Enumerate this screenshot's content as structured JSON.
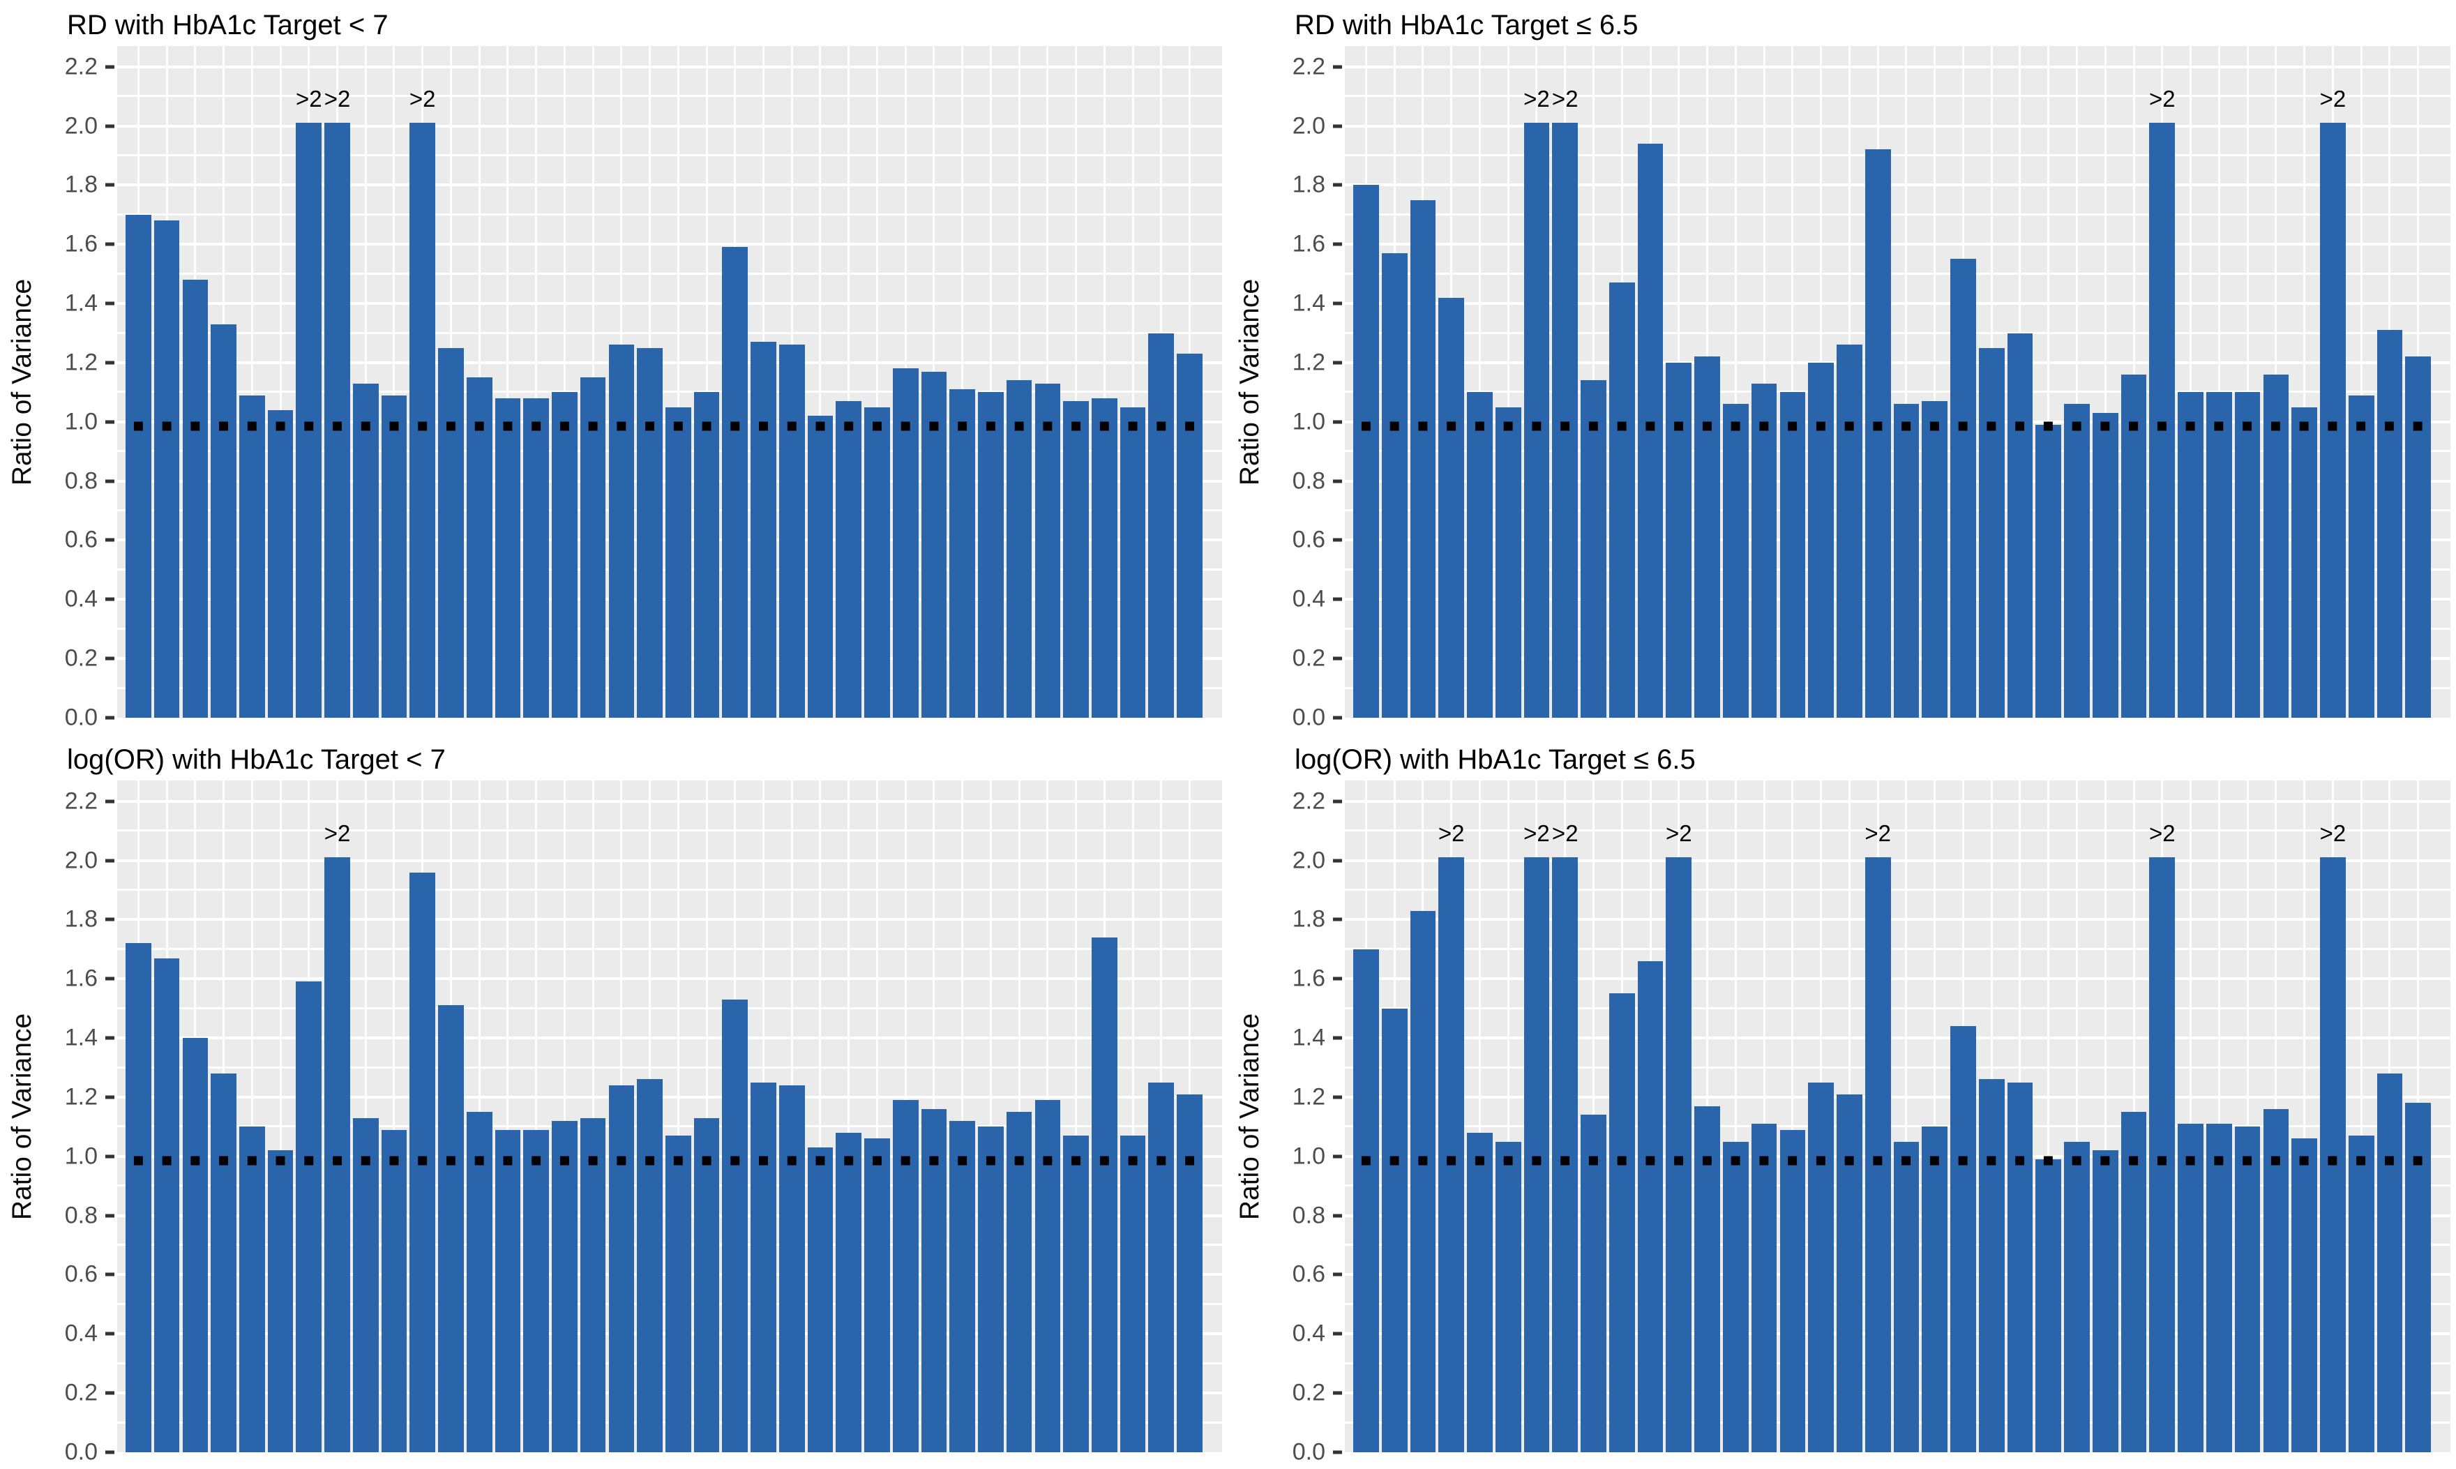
{
  "figure": {
    "background": "#FFFFFF",
    "layout": "2x2 grid of bar charts"
  },
  "chart_data": {
    "type": "bar",
    "ylabel": "Ratio of Variance",
    "ylim": [
      0,
      2.27
    ],
    "yticks": [
      "0.0",
      "0.2",
      "0.4",
      "0.6",
      "0.8",
      "1.0",
      "1.2",
      "1.4",
      "1.6",
      "1.8",
      "2.0",
      "2.2"
    ],
    "grid_minor_step": 0.1,
    "grid_on": true,
    "legend": "none",
    "xlabel": "",
    "x_tick_labels": "none",
    "n_bars_per_panel": 38,
    "reference_line_y": 1.0,
    "reference_line_style": "dotted",
    "reference_line_color": "#000000",
    "censor_cap": {
      "display_value": 2.01,
      "label": ">2",
      "label_y": 2.045
    },
    "bar_color": "#2A65AC",
    "panel_bg": "#EBEBEB",
    "grid_color": "#FFFFFF",
    "tick_label_color": "#4D4D4D",
    "title_color": "#000000",
    "panels": [
      {
        "id": "rd-hba1c-target-lt-7",
        "title": "RD with HbA1c Target < 7",
        "values": [
          1.7,
          1.68,
          1.48,
          1.33,
          1.09,
          1.04,
          ">2",
          ">2",
          1.13,
          1.09,
          ">2",
          1.25,
          1.15,
          1.08,
          1.08,
          1.1,
          1.15,
          1.26,
          1.25,
          1.05,
          1.1,
          1.59,
          1.27,
          1.26,
          1.02,
          1.07,
          1.05,
          1.18,
          1.17,
          1.11,
          1.1,
          1.14,
          1.13,
          1.07,
          1.08,
          1.05,
          1.3,
          1.23
        ]
      },
      {
        "id": "rd-hba1c-target-le-6p5",
        "title": "RD with HbA1c Target ≤ 6.5",
        "values": [
          1.8,
          1.57,
          1.75,
          1.42,
          1.1,
          1.05,
          ">2",
          ">2",
          1.14,
          1.47,
          1.94,
          1.2,
          1.22,
          1.06,
          1.13,
          1.1,
          1.2,
          1.26,
          1.92,
          1.06,
          1.07,
          1.55,
          1.25,
          1.3,
          0.99,
          1.06,
          1.03,
          1.16,
          ">2",
          1.1,
          1.1,
          1.1,
          1.16,
          1.05,
          ">2",
          1.09,
          1.31,
          1.22
        ]
      },
      {
        "id": "logor-hba1c-target-lt-7",
        "title": "log(OR) with HbA1c Target < 7",
        "values": [
          1.72,
          1.67,
          1.4,
          1.28,
          1.1,
          1.02,
          1.59,
          ">2",
          1.13,
          1.09,
          1.96,
          1.51,
          1.15,
          1.09,
          1.09,
          1.12,
          1.13,
          1.24,
          1.26,
          1.07,
          1.13,
          1.53,
          1.25,
          1.24,
          1.03,
          1.08,
          1.06,
          1.19,
          1.16,
          1.12,
          1.1,
          1.15,
          1.19,
          1.07,
          1.74,
          1.07,
          1.25,
          1.21
        ]
      },
      {
        "id": "logor-hba1c-target-le-6p5",
        "title": "log(OR) with HbA1c Target ≤ 6.5",
        "values": [
          1.7,
          1.5,
          1.83,
          ">2",
          1.08,
          1.05,
          ">2",
          ">2",
          1.14,
          1.55,
          1.66,
          ">2",
          1.17,
          1.05,
          1.11,
          1.09,
          1.25,
          1.21,
          ">2",
          1.05,
          1.1,
          1.44,
          1.26,
          1.25,
          0.99,
          1.05,
          1.02,
          1.15,
          ">2",
          1.11,
          1.11,
          1.1,
          1.16,
          1.06,
          ">2",
          1.07,
          1.28,
          1.18
        ]
      }
    ]
  }
}
